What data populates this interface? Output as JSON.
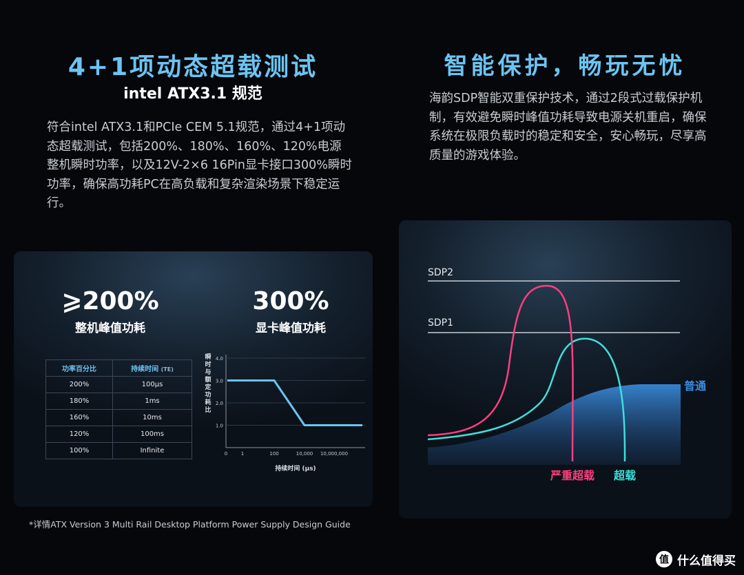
{
  "left": {
    "title": "4+1项动态超载测试",
    "subtitle": "intel ATX3.1 规范",
    "paragraph": "符合intel ATX3.1和PCIe CEM 5.1规范，通过4+1项动态超载测试，包括200%、180%、160%、120%电源整机瞬时功率，以及12V-2×6 16Pin显卡接口300%瞬时功率，确保高功耗PC在高负载和复杂渲染场景下稳定运行。",
    "stat1_value": "⩾200%",
    "stat1_label": "整机峰值功耗",
    "stat2_value": "300%",
    "stat2_label": "显卡峰值功耗",
    "table": {
      "header_pct": "功率百分比",
      "header_time": "持续时间",
      "header_time_unit": "(TE)",
      "rows": [
        {
          "pct": "200%",
          "time": "100μs"
        },
        {
          "pct": "180%",
          "time": "1ms"
        },
        {
          "pct": "160%",
          "time": "10ms"
        },
        {
          "pct": "120%",
          "time": "100ms"
        },
        {
          "pct": "100%",
          "time": "Infinite"
        }
      ]
    },
    "footnote": "*详情ATX Version 3 Multi Rail Desktop Platform Power Supply Design Guide"
  },
  "right": {
    "title": "智能保护，畅玩无忧",
    "paragraph": "海韵SDP智能双重保护技术，通过2段式过载保护机制，有效避免瞬时峰值功耗导致电源关机重启，确保系统在极限负载时的稳定和安全，安心畅玩，尽享高质量的游戏体验。"
  },
  "chart_data": [
    {
      "type": "line",
      "ylabel": "瞬时与额定功耗比",
      "xlabel": "持续时间 (μs)",
      "x_ticks": [
        "0",
        "1",
        "100",
        "10,000",
        "10,000,000"
      ],
      "y_ticks": [
        "1.0",
        "2.0",
        "3.0",
        "4.0"
      ],
      "ylim": [
        0,
        4
      ],
      "x_scale": "log",
      "series": [
        {
          "points": [
            {
              "x": "0",
              "y": 3.0
            },
            {
              "x": "100",
              "y": 3.0
            },
            {
              "x": "10,000",
              "y": 1.0
            },
            {
              "x": "10,000,000",
              "y": 1.0
            }
          ]
        }
      ],
      "color": "#6cc4f2"
    },
    {
      "type": "line",
      "threshold_labels": [
        "SDP2",
        "SDP1"
      ],
      "series": [
        {
          "name": "严重超载",
          "color": "#ff3f7f"
        },
        {
          "name": "超载",
          "color": "#3ee0dc"
        },
        {
          "name": "普通",
          "color": "#3a8ee0"
        }
      ]
    }
  ],
  "brand": {
    "logo_icon": "zhi-logo-icon",
    "text": "什么值得买"
  }
}
